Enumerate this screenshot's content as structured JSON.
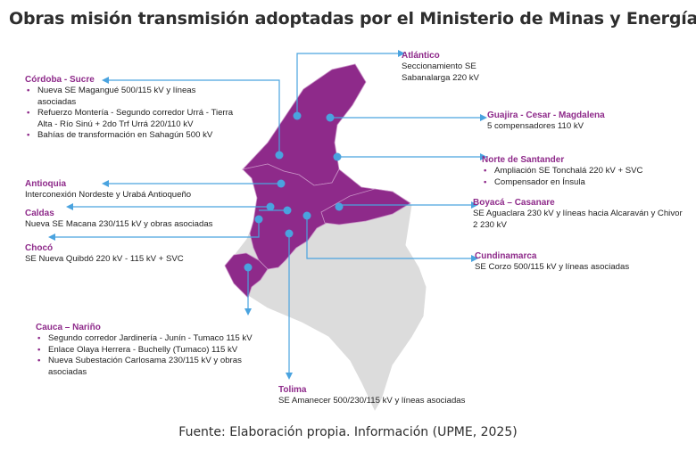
{
  "title": "Obras misión transmisión adoptadas por el Ministerio de Minas y Energía",
  "source": "Fuente: Elaboración propia. Información  (UPME, 2025)",
  "colors": {
    "accent": "#8e2a8a",
    "map_fill": "#8e2a8a",
    "map_gray": "#dcdcdc",
    "line": "#4aa3df"
  },
  "regions": {
    "cordoba": {
      "name": "Córdoba - Sucre",
      "items": [
        "Nueva SE Magangué 500/115 kV y líneas asociadas",
        "Refuerzo Montería - Segundo corredor Urrá - Tierra Alta - Río Sinú + 2do Trf Urrá 220/110 kV",
        "Bahías de transformación en Sahagún 500 kV"
      ]
    },
    "antioquia": {
      "name": "Antioquia",
      "desc": "Interconexión Nordeste y Urabá Antioqueño"
    },
    "caldas": {
      "name": "Caldas",
      "desc": "Nueva SE Macana 230/115 kV y obras asociadas"
    },
    "choco": {
      "name": "Chocó",
      "desc": "SE Nueva Quibdó 220 kV  - 115 kV + SVC"
    },
    "cauca": {
      "name": "Cauca – Nariño",
      "items": [
        "Segundo corredor Jardinería - Junín - Tumaco 115 kV",
        "Enlace Olaya Herrera - Buchelly (Tumaco) 115 kV",
        "Nueva Subestación Carlosama 230/115 kV y obras asociadas"
      ]
    },
    "atlantico": {
      "name": "Atlántico",
      "desc": "Seccionamiento SE Sabanalarga 220 kV"
    },
    "guajira": {
      "name": "Guajira - Cesar - Magdalena",
      "desc": "5 compensadores 110 kV"
    },
    "santander": {
      "name": "Norte de Santander",
      "items": [
        "Ampliación SE Tonchalá 220 kV + SVC",
        "Compensador en Ínsula"
      ]
    },
    "boyaca": {
      "name": "Boyacá – Casanare",
      "desc": "SE Aguaclara 230 kV y líneas hacia Alcaraván y Chivor 2 230 kV"
    },
    "cundinamarca": {
      "name": "Cundinamarca",
      "desc": "SE Corzo 500/115 kV y líneas asociadas"
    },
    "tolima": {
      "name": "Tolima",
      "desc": "SE Amanecer 500/230/115 kV y líneas asociadas"
    }
  }
}
